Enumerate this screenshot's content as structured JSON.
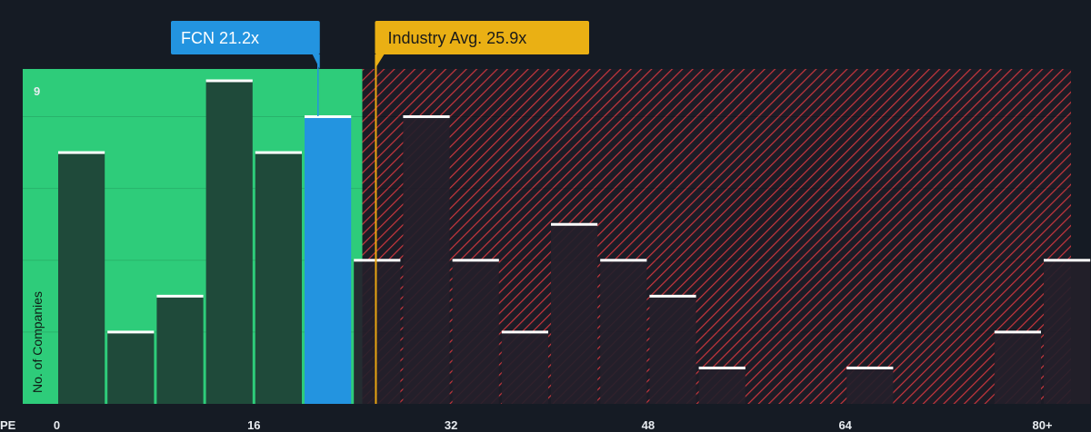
{
  "chart_data": {
    "type": "bar",
    "xlabel": "PE",
    "ylabel": "No. of Companies",
    "x_ticks": [
      "0",
      "16",
      "32",
      "48",
      "64",
      "80+"
    ],
    "x_tick_values": [
      0,
      16,
      32,
      48,
      64,
      80
    ],
    "xlim": [
      -2.8,
      82.7
    ],
    "ylim": [
      0,
      9
    ],
    "y_tick_label": "9",
    "bin_width": 4,
    "bins": [
      {
        "start": 0,
        "value": 7
      },
      {
        "start": 4,
        "value": 2
      },
      {
        "start": 8,
        "value": 3
      },
      {
        "start": 12,
        "value": 9
      },
      {
        "start": 16,
        "value": 7
      },
      {
        "start": 20,
        "value": 8,
        "highlight": true
      },
      {
        "start": 24,
        "value": 4
      },
      {
        "start": 28,
        "value": 8
      },
      {
        "start": 32,
        "value": 4
      },
      {
        "start": 36,
        "value": 2
      },
      {
        "start": 40,
        "value": 5
      },
      {
        "start": 44,
        "value": 4
      },
      {
        "start": 48,
        "value": 3
      },
      {
        "start": 52,
        "value": 1
      },
      {
        "start": 56,
        "value": 0
      },
      {
        "start": 60,
        "value": 0
      },
      {
        "start": 64,
        "value": 1
      },
      {
        "start": 68,
        "value": 0
      },
      {
        "start": 72,
        "value": 0
      },
      {
        "start": 76,
        "value": 2
      },
      {
        "start": 80,
        "value": 4
      }
    ],
    "company": {
      "label": "FCN 21.2x",
      "value": 21.2
    },
    "industry_avg": {
      "label": "Industry Avg. 25.9x",
      "value": 25.9
    },
    "undervalued_max": 24.8,
    "colors": {
      "background": "#151b24",
      "green_zone": "#2ecc7a",
      "bar_green": "#1f4a3a",
      "bar_red": "#241f2a",
      "highlight_bar": "#2394e0",
      "hatch": "#d23a42",
      "avg_line": "#e8a511",
      "callout_company": "#2394e0",
      "callout_industry": "#eab014",
      "cap": "#ffffff"
    }
  }
}
